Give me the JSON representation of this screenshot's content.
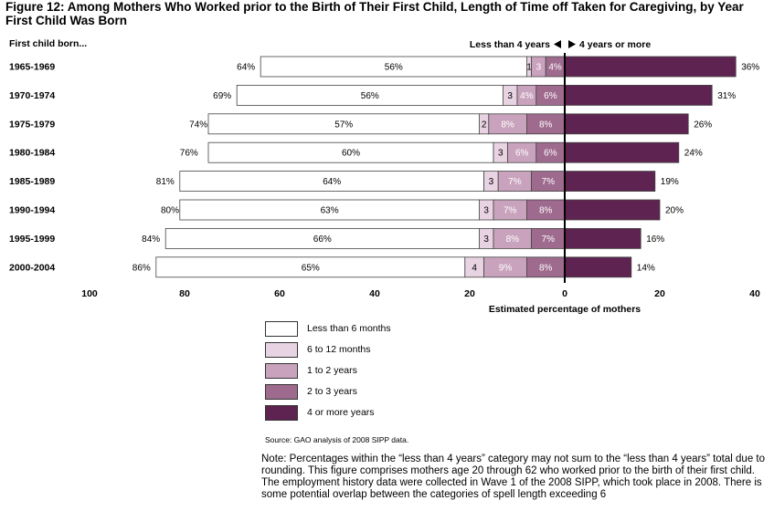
{
  "figure": {
    "title": "Figure 12: Among Mothers Who Worked prior to the Birth of Their First Child, Length of Time off Taken for Caregiving, by Year First Child Was Born",
    "stub_header": "First child born...",
    "direction_left_label": "Less than 4 years",
    "direction_right_label": "4 years or more",
    "source": "Source: GAO analysis of 2008 SIPP data.",
    "note": "Note: Percentages within the “less than 4 years” category may not sum to the “less than 4 years” total due to rounding. This figure comprises mothers age 20 through 62 who worked prior to the birth of their first child. The employment history data were collected in Wave 1 of the 2008 SIPP, which took place in 2008. There is some potential overlap between the categories of spell length exceeding 6"
  },
  "colors": {
    "less_than_6_months": "#ffffff",
    "6_to_12_months": "#e8d3e2",
    "1_to_2_years": "#c9a3bd",
    "2_to_3_years": "#9e6a8e",
    "4_or_more_years": "#5e2350",
    "outline": "#444444",
    "axis": "#000000"
  },
  "chart_data": {
    "type": "bar",
    "orientation": "horizontal-diverging",
    "categories": [
      "1965-1969",
      "1970-1974",
      "1975-1979",
      "1980-1984",
      "1985-1989",
      "1990-1994",
      "1995-1999",
      "2000-2004"
    ],
    "series": [
      {
        "name": "Less than 6 months",
        "values": [
          56,
          56,
          57,
          60,
          64,
          63,
          66,
          65
        ],
        "labels": [
          "56%",
          "56%",
          "57%",
          "60%",
          "64%",
          "63%",
          "66%",
          "65%"
        ]
      },
      {
        "name": "6 to 12 months",
        "values": [
          1,
          3,
          2,
          3,
          3,
          3,
          3,
          4
        ],
        "labels": [
          "1",
          "3",
          "2",
          "3",
          "3",
          "3",
          "3",
          "4"
        ]
      },
      {
        "name": "1 to 2 years",
        "values": [
          3,
          4,
          8,
          6,
          7,
          7,
          8,
          9
        ],
        "labels": [
          "3",
          "4%",
          "8%",
          "6%",
          "7%",
          "7%",
          "8%",
          "9%"
        ]
      },
      {
        "name": "2 to 3 years",
        "values": [
          4,
          6,
          8,
          6,
          7,
          8,
          7,
          8
        ],
        "labels": [
          "4%",
          "6%",
          "8%",
          "6%",
          "7%",
          "8%",
          "7%",
          "8%"
        ]
      },
      {
        "name": "4 or more years",
        "values": [
          36,
          31,
          26,
          24,
          19,
          20,
          16,
          14
        ],
        "labels": [
          "36%",
          "31%",
          "26%",
          "24%",
          "19%",
          "20%",
          "16%",
          "14%"
        ]
      }
    ],
    "left_totals": [
      "64%",
      "69%",
      "74%",
      "76%",
      "81%",
      "80%",
      "84%",
      "86%"
    ],
    "left_total_values": [
      64,
      69,
      74,
      76,
      81,
      80,
      84,
      86
    ],
    "x_ticks": [
      "100",
      "80",
      "60",
      "40",
      "20",
      "0",
      "20",
      "40"
    ],
    "xlabel": "Estimated percentage of mothers",
    "xlim": [
      -100,
      40
    ],
    "grid": false,
    "legend_position": "bottom"
  },
  "legend": [
    {
      "label": "Less than 6 months",
      "color_key": "less_than_6_months"
    },
    {
      "label": "6 to 12 months",
      "color_key": "6_to_12_months"
    },
    {
      "label": "1 to 2 years",
      "color_key": "1_to_2_years"
    },
    {
      "label": "2 to 3 years",
      "color_key": "2_to_3_years"
    },
    {
      "label": "4 or more years",
      "color_key": "4_or_more_years"
    }
  ]
}
